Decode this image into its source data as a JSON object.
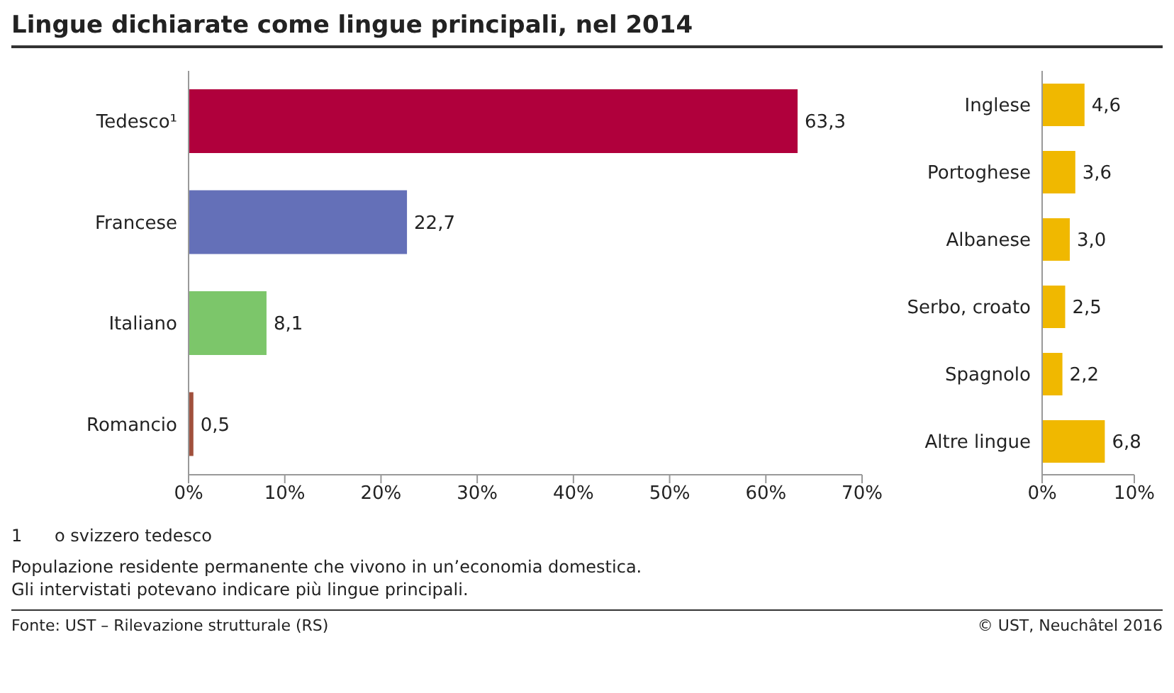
{
  "chart_data": [
    {
      "type": "bar",
      "orientation": "horizontal",
      "title": "Lingue dichiarate come lingue principali, nel 2014",
      "categories": [
        "Tedesco¹",
        "Francese",
        "Italiano",
        "Romancio"
      ],
      "values": [
        63.3,
        22.7,
        8.1,
        0.5
      ],
      "colors": [
        "#b0003c",
        "#6470b8",
        "#7cc66a",
        "#a0503c"
      ],
      "value_labels": [
        "63,3",
        "22,7",
        "8,1",
        "0,5"
      ],
      "xlim": [
        0,
        70
      ],
      "xticks": [
        {
          "value": 0,
          "label": "0%"
        },
        {
          "value": 10,
          "label": "10%"
        },
        {
          "value": 20,
          "label": "20%"
        },
        {
          "value": 30,
          "label": "30%"
        },
        {
          "value": 40,
          "label": "40%"
        },
        {
          "value": 50,
          "label": "50%"
        },
        {
          "value": 60,
          "label": "60%"
        },
        {
          "value": 70,
          "label": "70%"
        }
      ],
      "grid": false,
      "annotations": [
        "1      o svizzero tedesco",
        "Populazione residente permanente che vivono in un’economia domestica.",
        "Gli intervistati potevano indicare più lingue principali.",
        "Fonte: UST – Rilevazione strutturale (RS)",
        "© UST, Neuchâtel 2016"
      ]
    },
    {
      "type": "bar",
      "orientation": "horizontal",
      "categories": [
        "Inglese",
        "Portoghese",
        "Albanese",
        "Serbo, croato",
        "Spagnolo",
        "Altre lingue"
      ],
      "values": [
        4.6,
        3.6,
        3.0,
        2.5,
        2.2,
        6.8
      ],
      "colors": [
        "#f0b800",
        "#f0b800",
        "#f0b800",
        "#f0b800",
        "#f0b800",
        "#f0b800"
      ],
      "value_labels": [
        "4,6",
        "3,6",
        "3,0",
        "2,5",
        "2,2",
        "6,8"
      ],
      "xlim": [
        0,
        10
      ],
      "xticks": [
        {
          "value": 0,
          "label": "0%"
        },
        {
          "value": 10,
          "label": "10%"
        }
      ],
      "grid": false
    }
  ]
}
